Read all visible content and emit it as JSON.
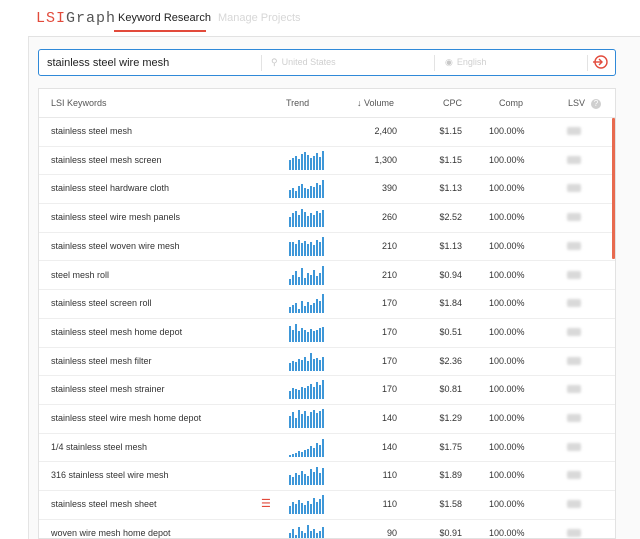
{
  "header": {
    "logo_left": "LSI",
    "logo_right": "Graph",
    "tabs": [
      {
        "label": "Keyword Research",
        "active": true
      },
      {
        "label": "Manage Projects",
        "active": false
      }
    ]
  },
  "search": {
    "query": "stainless steel wire mesh",
    "location": "United States",
    "language": "English"
  },
  "table": {
    "columns": {
      "keywords": "LSI Keywords",
      "trend": "Trend",
      "volume": "Volume",
      "cpc": "CPC",
      "comp": "Comp",
      "lsv": "LSV"
    },
    "rows": [
      {
        "keyword": "stainless steel mesh",
        "volume": "2,400",
        "cpc": "$1.15",
        "comp": "100.00%",
        "trend": []
      },
      {
        "keyword": "stainless steel mesh screen",
        "volume": "1,300",
        "cpc": "$1.15",
        "comp": "100.00%",
        "trend": [
          0.5,
          0.6,
          0.7,
          0.55,
          0.8,
          0.9,
          0.75,
          0.6,
          0.7,
          0.85,
          0.65,
          0.95
        ]
      },
      {
        "keyword": "stainless steel hardware cloth",
        "volume": "390",
        "cpc": "$1.13",
        "comp": "100.00%",
        "trend": [
          0.4,
          0.5,
          0.35,
          0.6,
          0.7,
          0.5,
          0.45,
          0.6,
          0.55,
          0.75,
          0.65,
          0.9
        ]
      },
      {
        "keyword": "stainless steel wire mesh panels",
        "volume": "260",
        "cpc": "$2.52",
        "comp": "100.00%",
        "trend": [
          0.5,
          0.7,
          0.8,
          0.6,
          0.9,
          0.75,
          0.55,
          0.7,
          0.6,
          0.8,
          0.7,
          0.85
        ]
      },
      {
        "keyword": "stainless steel woven wire mesh",
        "volume": "210",
        "cpc": "$1.13",
        "comp": "100.00%",
        "trend": [
          0.7,
          0.7,
          0.6,
          0.8,
          0.65,
          0.75,
          0.6,
          0.7,
          0.55,
          0.8,
          0.7,
          0.95
        ]
      },
      {
        "keyword": "steel mesh roll",
        "volume": "210",
        "cpc": "$0.94",
        "comp": "100.00%",
        "trend": [
          0.3,
          0.5,
          0.7,
          0.4,
          0.85,
          0.35,
          0.6,
          0.5,
          0.75,
          0.45,
          0.6,
          0.95
        ]
      },
      {
        "keyword": "stainless steel screen roll",
        "volume": "170",
        "cpc": "$1.84",
        "comp": "100.00%",
        "trend": [
          0.3,
          0.4,
          0.5,
          0.2,
          0.6,
          0.35,
          0.55,
          0.4,
          0.5,
          0.7,
          0.6,
          0.95
        ]
      },
      {
        "keyword": "stainless steel mesh home depot",
        "volume": "170",
        "cpc": "$0.51",
        "comp": "100.00%",
        "trend": [
          0.8,
          0.6,
          0.9,
          0.55,
          0.7,
          0.6,
          0.5,
          0.65,
          0.55,
          0.6,
          0.7,
          0.75
        ]
      },
      {
        "keyword": "stainless steel mesh filter",
        "volume": "170",
        "cpc": "$2.36",
        "comp": "100.00%",
        "trend": [
          0.4,
          0.5,
          0.45,
          0.6,
          0.55,
          0.7,
          0.5,
          0.9,
          0.6,
          0.65,
          0.55,
          0.7
        ]
      },
      {
        "keyword": "stainless steel mesh strainer",
        "volume": "170",
        "cpc": "$0.81",
        "comp": "100.00%",
        "trend": [
          0.4,
          0.55,
          0.5,
          0.45,
          0.6,
          0.55,
          0.65,
          0.75,
          0.6,
          0.85,
          0.7,
          0.95
        ]
      },
      {
        "keyword": "stainless steel wire mesh home depot",
        "volume": "140",
        "cpc": "$1.29",
        "comp": "100.00%",
        "trend": [
          0.6,
          0.8,
          0.5,
          0.9,
          0.7,
          0.85,
          0.6,
          0.8,
          0.9,
          0.75,
          0.85,
          0.95
        ]
      },
      {
        "keyword": "1/4 stainless steel mesh",
        "volume": "140",
        "cpc": "$1.75",
        "comp": "100.00%",
        "trend": [
          0.1,
          0.15,
          0.2,
          0.3,
          0.25,
          0.35,
          0.4,
          0.55,
          0.45,
          0.7,
          0.6,
          0.9
        ]
      },
      {
        "keyword": "316 stainless steel wire mesh",
        "volume": "110",
        "cpc": "$1.89",
        "comp": "100.00%",
        "trend": [
          0.5,
          0.4,
          0.6,
          0.5,
          0.7,
          0.55,
          0.45,
          0.8,
          0.65,
          0.9,
          0.6,
          0.85
        ]
      },
      {
        "keyword": "stainless steel mesh sheet",
        "volume": "110",
        "cpc": "$1.58",
        "comp": "100.00%",
        "trend": [
          0.4,
          0.6,
          0.5,
          0.7,
          0.55,
          0.45,
          0.65,
          0.5,
          0.8,
          0.6,
          0.75,
          0.95
        ],
        "list_icon": true
      },
      {
        "keyword": "woven wire mesh home depot",
        "volume": "90",
        "cpc": "$0.91",
        "comp": "100.00%",
        "trend": [
          0.5,
          0.7,
          0.4,
          0.8,
          0.6,
          0.5,
          0.9,
          0.6,
          0.7,
          0.5,
          0.6,
          0.8
        ]
      }
    ]
  },
  "colors": {
    "accent": "#e24a3b",
    "bar": "#3e97d8",
    "search_border": "#2f89d8"
  }
}
